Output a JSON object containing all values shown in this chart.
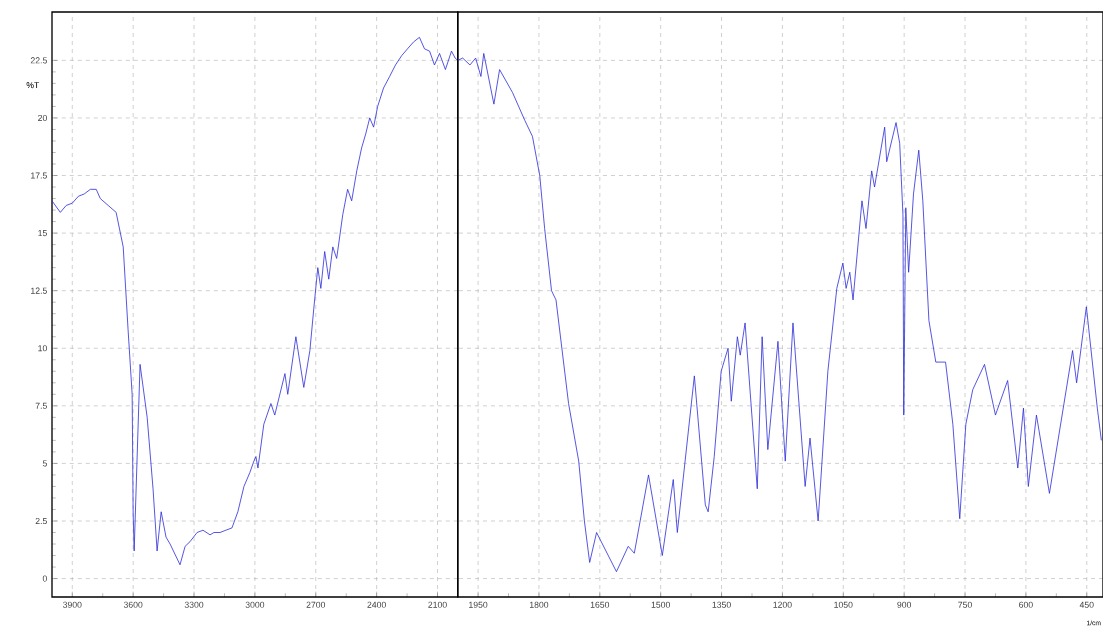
{
  "chart_data": [
    {
      "type": "line",
      "ylabel": "%T",
      "xlim": [
        4000,
        2000
      ],
      "ylim": [
        -0.8,
        24.6
      ],
      "xticks": [
        3900,
        3600,
        3300,
        3000,
        2700,
        2400,
        2100
      ],
      "yticks": [
        0,
        2.5,
        5,
        7.5,
        10,
        12.5,
        15,
        17.5,
        20,
        22.5
      ],
      "grid": true,
      "series": [
        {
          "color": "#2b2bd9",
          "x": [
            4000,
            3959,
            3930,
            3900,
            3870,
            3841,
            3811,
            3782,
            3762,
            3723,
            3684,
            3649,
            3625,
            3605,
            3600,
            3595,
            3566,
            3531,
            3502,
            3482,
            3462,
            3438,
            3418,
            3369,
            3344,
            3320,
            3285,
            3256,
            3221,
            3202,
            3172,
            3143,
            3113,
            3084,
            3054,
            3025,
            3005,
            2995,
            2985,
            2956,
            2921,
            2902,
            2852,
            2838,
            2798,
            2759,
            2729,
            2710,
            2690,
            2675,
            2656,
            2636,
            2616,
            2597,
            2567,
            2543,
            2523,
            2498,
            2474,
            2454,
            2434,
            2415,
            2395,
            2366,
            2336,
            2307,
            2277,
            2248,
            2218,
            2189,
            2164,
            2139,
            2115,
            2090,
            2061,
            2031,
            2013,
            2000
          ],
          "values": [
            16.4,
            15.9,
            16.2,
            16.3,
            16.6,
            16.7,
            16.9,
            16.9,
            16.5,
            16.2,
            15.9,
            14.4,
            10.8,
            8.0,
            2.8,
            1.2,
            9.3,
            7.0,
            3.9,
            1.2,
            2.9,
            1.8,
            1.5,
            0.6,
            1.4,
            1.6,
            2.0,
            2.1,
            1.9,
            2.0,
            2.0,
            2.1,
            2.2,
            2.9,
            4.0,
            4.6,
            5.1,
            5.3,
            4.8,
            6.7,
            7.6,
            7.1,
            8.9,
            8.0,
            10.5,
            8.3,
            9.9,
            11.7,
            13.5,
            12.6,
            14.2,
            13.0,
            14.4,
            13.9,
            15.8,
            16.9,
            16.4,
            17.7,
            18.7,
            19.3,
            20.0,
            19.6,
            20.5,
            21.3,
            21.8,
            22.3,
            22.7,
            23.0,
            23.3,
            23.5,
            23.0,
            22.9,
            22.3,
            22.8,
            22.1,
            22.9,
            22.6,
            22.5
          ]
        }
      ]
    },
    {
      "type": "line",
      "xlabel": "1/cm",
      "xlim": [
        2000,
        410
      ],
      "ylim": [
        -0.8,
        24.6
      ],
      "xticks": [
        1950,
        1800,
        1650,
        1500,
        1350,
        1200,
        1050,
        900,
        750,
        600,
        450
      ],
      "yticks": [
        0,
        2.5,
        5,
        7.5,
        10,
        12.5,
        15,
        17.5,
        20,
        22.5
      ],
      "tick_labels": "x",
      "grid": true,
      "series": [
        {
          "color": "#2b2bd9",
          "x": [
            2000,
            1988,
            1970,
            1956,
            1943,
            1936,
            1911,
            1897,
            1865,
            1835,
            1816,
            1798,
            1786,
            1769,
            1758,
            1727,
            1702,
            1688,
            1675,
            1658,
            1609,
            1580,
            1565,
            1530,
            1496,
            1469,
            1459,
            1417,
            1390,
            1383,
            1368,
            1351,
            1334,
            1326,
            1311,
            1304,
            1292,
            1267,
            1262,
            1250,
            1236,
            1211,
            1193,
            1174,
            1144,
            1132,
            1112,
            1088,
            1066,
            1051,
            1043,
            1034,
            1026,
            1004,
            994,
            980,
            973,
            948,
            943,
            920,
            911,
            903,
            901,
            896,
            889,
            877,
            864,
            854,
            839,
            822,
            798,
            780,
            763,
            748,
            731,
            702,
            675,
            645,
            620,
            606,
            594,
            574,
            542,
            485,
            475,
            451,
            424,
            414
          ],
          "values": [
            22.5,
            22.6,
            22.3,
            22.6,
            21.8,
            22.8,
            20.6,
            22.1,
            21.1,
            19.9,
            19.2,
            17.5,
            15.2,
            12.5,
            12.1,
            7.6,
            5.1,
            2.5,
            0.7,
            2.0,
            0.3,
            1.4,
            1.1,
            4.5,
            1.0,
            4.3,
            2.0,
            8.8,
            3.2,
            2.9,
            5.3,
            9.0,
            10.0,
            7.7,
            10.5,
            9.7,
            11.1,
            5.1,
            3.9,
            10.5,
            5.6,
            10.3,
            5.1,
            11.1,
            4.0,
            6.1,
            2.5,
            9.0,
            12.6,
            13.7,
            12.6,
            13.3,
            12.1,
            16.4,
            15.2,
            17.7,
            17.0,
            19.6,
            18.1,
            19.8,
            18.9,
            15.8,
            7.1,
            16.1,
            13.3,
            16.7,
            18.6,
            16.4,
            11.2,
            9.4,
            9.4,
            6.7,
            2.6,
            6.7,
            8.2,
            9.3,
            7.1,
            8.6,
            4.8,
            7.4,
            4.0,
            7.1,
            3.7,
            9.9,
            8.5,
            11.8,
            7.4,
            6.0
          ]
        }
      ]
    }
  ]
}
